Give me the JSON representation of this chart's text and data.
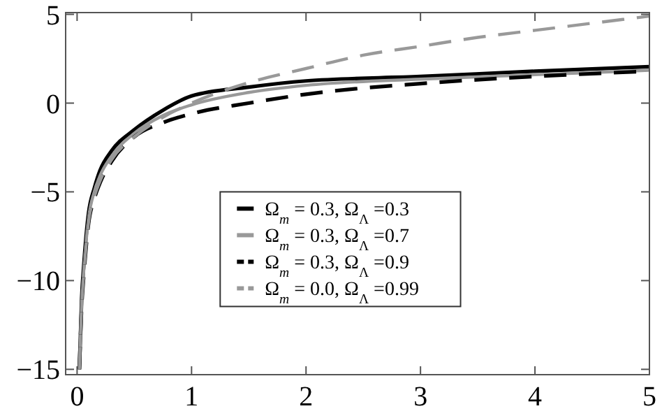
{
  "chart_data": {
    "type": "line",
    "xlim": [
      -0.1,
      5
    ],
    "ylim": [
      -15.3,
      5.1
    ],
    "xticks": [
      0,
      1,
      2,
      3,
      4,
      5
    ],
    "yticks": [
      -15,
      -10,
      -5,
      0,
      5
    ],
    "grid": false,
    "legend": "bottom",
    "series": [
      {
        "name": "Ω$_{m}$ = 0.3, Ω$_{Λ}$ =0.3",
        "color": "#000000",
        "line_style": "solid",
        "x": [
          0.02,
          0.04,
          0.06,
          0.1,
          0.15,
          0.2,
          0.3,
          0.5,
          0.75,
          1,
          1.5,
          2,
          3,
          4,
          5
        ],
        "values": [
          -15,
          -11,
          -9,
          -6.2,
          -4.8,
          -3.8,
          -2.7,
          -1.5,
          -0.4,
          0.4,
          0.9,
          1.25,
          1.5,
          1.8,
          2.05
        ]
      },
      {
        "name": "Ω$_{m}$ = 0.3, Ω$_{Λ}$ =0.7",
        "color": "#999999",
        "line_style": "solid",
        "x": [
          0.02,
          0.04,
          0.06,
          0.1,
          0.15,
          0.2,
          0.3,
          0.5,
          0.75,
          1,
          1.5,
          2,
          3,
          4,
          5
        ],
        "values": [
          -15,
          -11.3,
          -9.3,
          -6.5,
          -5,
          -4.1,
          -3,
          -1.7,
          -0.7,
          -0.1,
          0.6,
          1,
          1.35,
          1.6,
          1.85
        ]
      },
      {
        "name": "Ω$_{m}$ = 0.3, Ω$_{Λ}$ =0.9",
        "color": "#000000",
        "line_style": "dashed",
        "x": [
          0.02,
          0.04,
          0.06,
          0.1,
          0.15,
          0.2,
          0.3,
          0.5,
          0.75,
          1,
          1.5,
          2,
          3,
          4,
          5
        ],
        "values": [
          -15,
          -11.5,
          -9.6,
          -6.8,
          -5.4,
          -4.5,
          -3.3,
          -1.9,
          -1.1,
          -0.6,
          0,
          0.5,
          1.1,
          1.5,
          1.8
        ]
      },
      {
        "name": "Ω$_{m}$ = 0.0, Ω$_{Λ}$ =0.99",
        "color": "#999999",
        "line_style": "dashed",
        "x": [
          0.02,
          0.04,
          0.06,
          0.1,
          0.15,
          0.2,
          0.3,
          0.5,
          0.75,
          1,
          1.5,
          2,
          2.5,
          3,
          3.5,
          4,
          4.5,
          5
        ],
        "values": [
          -15,
          -11.4,
          -9.5,
          -6.7,
          -5.3,
          -4.4,
          -3.2,
          -1.9,
          -0.8,
          0,
          1.15,
          1.95,
          2.7,
          3.2,
          3.7,
          4.1,
          4.5,
          4.9
        ]
      }
    ]
  }
}
